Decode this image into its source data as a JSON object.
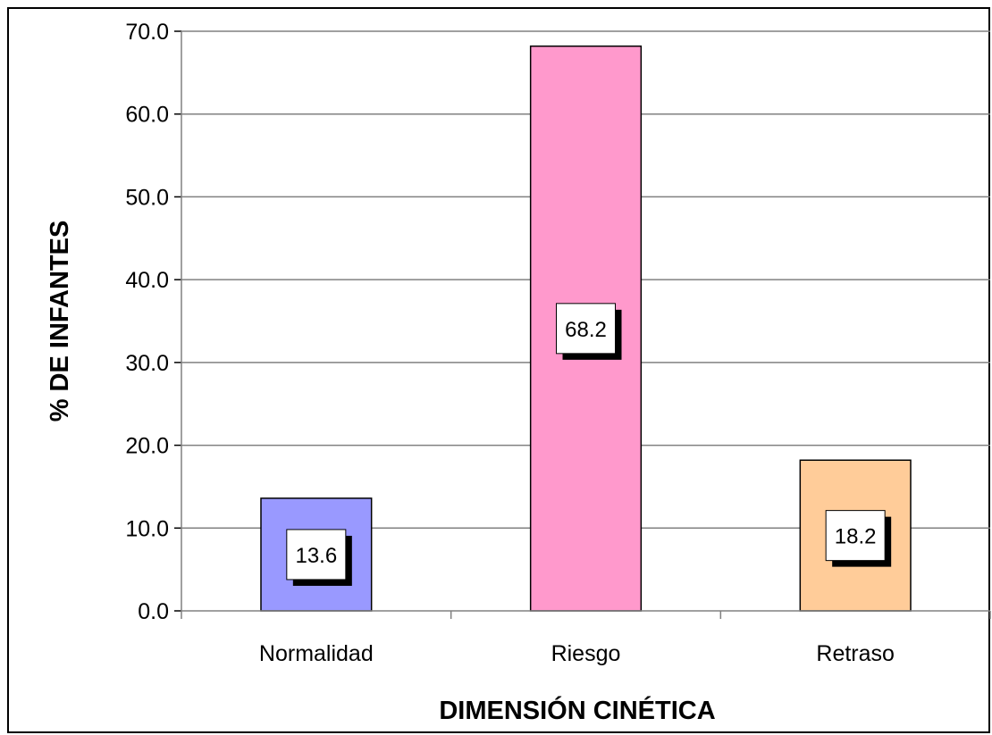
{
  "chart_data": {
    "type": "bar",
    "categories": [
      "Normalidad",
      "Riesgo",
      "Retraso"
    ],
    "values": [
      13.6,
      68.2,
      18.2
    ],
    "value_labels": [
      "13.6",
      "68.2",
      "18.2"
    ],
    "bar_colors": [
      "#9999FF",
      "#FF99CC",
      "#FFCC99"
    ],
    "gridline_color": "#808080",
    "xlabel": "DIMENSIÓN CINÉTICA",
    "ylabel": "% DE INFANTES",
    "ylim": [
      0,
      70
    ],
    "yticks": [
      0,
      10,
      20,
      30,
      40,
      50,
      60,
      70
    ],
    "ytick_labels": [
      "0.0",
      "10.0",
      "20.0",
      "30.0",
      "40.0",
      "50.0",
      "60.0",
      "70.0"
    ],
    "grid": true,
    "legend": "none"
  }
}
